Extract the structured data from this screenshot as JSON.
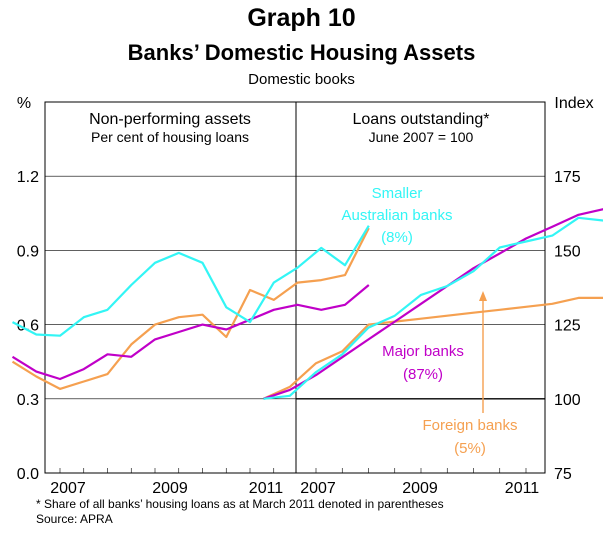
{
  "header": {
    "title": "Graph 10",
    "subtitle": "Banks’ Domestic Housing Assets",
    "subsubtitle": "Domestic books"
  },
  "footnote": {
    "line1": "*   Share of all banks’ housing loans as at March 2011 denoted in parentheses",
    "line2": "Source: APRA"
  },
  "colors": {
    "cyan": "#33f5f5",
    "magenta": "#c000c8",
    "orange": "#f5a050"
  },
  "chart_data": [
    {
      "type": "line",
      "title": "Non-performing assets",
      "subtitle": "Per cent of housing loans",
      "ylabel": "%",
      "ylim": [
        0,
        1.5
      ],
      "yticks": [
        "0.0",
        "0.3",
        "0.6",
        "0.9",
        "1.2"
      ],
      "xticks": [
        "2007",
        "2009",
        "2011"
      ],
      "x": [
        "2006-06",
        "2006-09",
        "2006-12",
        "2007-03",
        "2007-06",
        "2007-09",
        "2007-12",
        "2008-03",
        "2008-06",
        "2008-09",
        "2008-12",
        "2009-03",
        "2009-06",
        "2009-09",
        "2009-12",
        "2010-03",
        "2010-06",
        "2010-09",
        "2010-12",
        "2011-03"
      ],
      "series": [
        {
          "name": "Smaller Australian banks",
          "color": "cyan",
          "values": [
            0.61,
            0.56,
            0.555,
            0.63,
            0.66,
            0.76,
            0.85,
            0.89,
            0.85,
            0.67,
            0.61,
            0.77,
            0.83,
            0.91,
            0.84,
            1.0,
            null,
            null,
            null,
            null
          ]
        },
        {
          "name": "Major banks",
          "color": "magenta",
          "values": [
            0.47,
            0.41,
            0.38,
            0.42,
            0.48,
            0.47,
            0.54,
            0.57,
            0.6,
            0.58,
            0.62,
            0.66,
            0.68,
            0.66,
            0.68,
            0.76,
            null,
            null,
            null,
            null
          ]
        },
        {
          "name": "Foreign banks",
          "color": "orange",
          "values": [
            0.45,
            0.39,
            0.34,
            0.37,
            0.4,
            0.52,
            0.6,
            0.63,
            0.64,
            0.55,
            0.74,
            0.7,
            0.77,
            0.78,
            0.8,
            0.99,
            null,
            null,
            null,
            null
          ]
        }
      ]
    },
    {
      "type": "line",
      "title": "Loans outstanding*",
      "subtitle": "June 2007 = 100",
      "ylabel": "Index",
      "ylim": [
        75,
        200
      ],
      "yticks": [
        "75",
        "100",
        "125",
        "150",
        "175"
      ],
      "xticks": [
        "2007",
        "2009",
        "2011"
      ],
      "reference_line": 100,
      "x": [
        "2007-06",
        "2007-09",
        "2007-12",
        "2008-03",
        "2008-06",
        "2008-09",
        "2008-12",
        "2009-03",
        "2009-06",
        "2009-09",
        "2009-12",
        "2010-03",
        "2010-06",
        "2010-09",
        "2010-12",
        "2011-03"
      ],
      "series": [
        {
          "name": "Smaller Australian banks",
          "share": "(8%)",
          "color": "cyan",
          "values": [
            100,
            101,
            109,
            115,
            124,
            128,
            135,
            138,
            143,
            151,
            153,
            155,
            161,
            160,
            170,
            181
          ]
        },
        {
          "name": "Major banks",
          "share": "(87%)",
          "color": "magenta",
          "values": [
            100,
            103,
            108,
            114,
            120,
            126,
            132,
            138,
            144,
            149,
            154,
            158,
            162,
            164,
            167,
            169
          ]
        },
        {
          "name": "Foreign banks",
          "share": "(5%)",
          "color": "orange",
          "values": [
            100,
            104,
            112,
            116,
            125,
            126,
            127,
            128,
            129,
            130,
            131,
            132,
            134,
            134,
            135,
            136
          ]
        }
      ],
      "annotations": [
        {
          "text_lines": [
            "Smaller",
            "Australian banks",
            "(8%)"
          ],
          "color": "cyan"
        },
        {
          "text_lines": [
            "Major banks",
            "(87%)"
          ],
          "color": "magenta"
        },
        {
          "text_lines": [
            "Foreign banks",
            "(5%)"
          ],
          "color": "orange"
        }
      ]
    }
  ]
}
